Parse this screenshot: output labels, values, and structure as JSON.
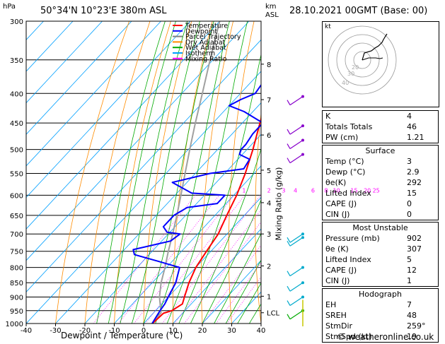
{
  "header": {
    "location": "50°34'N  10°23'E  380m  ASL",
    "datetime": "28.10.2021  00GMT  (Base: 00)",
    "hpa_label": "hPa",
    "km_label": "km",
    "asl_label": "ASL"
  },
  "chart_data": {
    "type": "line",
    "subtype": "skew-T log-P diagram",
    "xlabel": "Dewpoint / Temperature (°C)",
    "ylabel_right": "Mixing Ratio (g/kg)",
    "x_ticks": [
      "-40",
      "-30",
      "-20",
      "-10",
      "0",
      "10",
      "20",
      "30",
      "40"
    ],
    "p_ticks": [
      "300",
      "350",
      "400",
      "450",
      "500",
      "550",
      "600",
      "650",
      "700",
      "750",
      "800",
      "850",
      "900",
      "950",
      "1000"
    ],
    "km_ticks": [
      {
        "label": "8",
        "p": 356
      },
      {
        "label": "7",
        "p": 410
      },
      {
        "label": "6",
        "p": 472
      },
      {
        "label": "5",
        "p": 543
      },
      {
        "label": "4",
        "p": 618
      },
      {
        "label": "3",
        "p": 700
      },
      {
        "label": "2",
        "p": 795
      },
      {
        "label": "1",
        "p": 897
      },
      {
        "label": "LCL",
        "p": 958
      }
    ],
    "mixing_ratio_labels": [
      {
        "label": "1",
        "t": -6.5
      },
      {
        "label": "2",
        "t": 2
      },
      {
        "label": "3",
        "t": 7
      },
      {
        "label": "4",
        "t": 11
      },
      {
        "label": "6",
        "t": 17
      },
      {
        "label": "8",
        "t": 21.5
      },
      {
        "label": "10",
        "t": 25
      },
      {
        "label": "15",
        "t": 31
      },
      {
        "label": "20",
        "t": 35.5
      },
      {
        "label": "25",
        "t": 38.5
      }
    ],
    "legend": [
      {
        "name": "Temperature",
        "color": "#ff0000"
      },
      {
        "name": "Dewpoint",
        "color": "#0000ff"
      },
      {
        "name": "Parcel Trajectory",
        "color": "#808080"
      },
      {
        "name": "Dry Adiabat",
        "color": "#ff8c00"
      },
      {
        "name": "Wet Adiabat",
        "color": "#00aa00"
      },
      {
        "name": "Isotherm",
        "color": "#00a0ff"
      },
      {
        "name": "Mixing Ratio",
        "color": "#ff00ff"
      }
    ],
    "temperature": [
      [
        1000,
        3
      ],
      [
        960,
        3.5
      ],
      [
        950,
        5.5
      ],
      [
        925,
        7
      ],
      [
        900,
        5.5
      ],
      [
        850,
        2.5
      ],
      [
        800,
        0
      ],
      [
        750,
        -1.5
      ],
      [
        700,
        -3
      ],
      [
        650,
        -6
      ],
      [
        600,
        -9
      ],
      [
        550,
        -13
      ],
      [
        500,
        -18
      ],
      [
        450,
        -24
      ],
      [
        400,
        -30.5
      ],
      [
        350,
        -38.5
      ],
      [
        300,
        -47
      ]
    ],
    "dewpoint": [
      [
        1000,
        2.9
      ],
      [
        950,
        1.5
      ],
      [
        925,
        1
      ],
      [
        900,
        0
      ],
      [
        850,
        -2
      ],
      [
        800,
        -5.5
      ],
      [
        780,
        -15
      ],
      [
        760,
        -25
      ],
      [
        745,
        -27
      ],
      [
        720,
        -17
      ],
      [
        700,
        -16
      ],
      [
        695,
        -21
      ],
      [
        680,
        -24
      ],
      [
        650,
        -24
      ],
      [
        630,
        -22
      ],
      [
        620,
        -13
      ],
      [
        600,
        -13
      ],
      [
        595,
        -25
      ],
      [
        570,
        -35
      ],
      [
        550,
        -25
      ],
      [
        540,
        -15
      ],
      [
        520,
        -16
      ],
      [
        510,
        -21
      ],
      [
        500,
        -22
      ],
      [
        490,
        -22
      ],
      [
        470,
        -23
      ],
      [
        450,
        -23
      ],
      [
        430,
        -33
      ],
      [
        420,
        -40
      ],
      [
        410,
        -38
      ],
      [
        400,
        -35
      ],
      [
        380,
        -36
      ],
      [
        360,
        -34
      ],
      [
        350,
        -38
      ],
      [
        345,
        -35
      ],
      [
        320,
        -40
      ],
      [
        300,
        -44
      ]
    ],
    "parcel": [
      [
        1000,
        3
      ],
      [
        958,
        2.5
      ],
      [
        900,
        -3
      ],
      [
        850,
        -7
      ],
      [
        800,
        -10.5
      ],
      [
        750,
        -14.5
      ],
      [
        700,
        -18.5
      ],
      [
        650,
        -23
      ],
      [
        600,
        -28
      ],
      [
        550,
        -33.5
      ],
      [
        500,
        -39.5
      ],
      [
        450,
        -46
      ],
      [
        400,
        -53
      ],
      [
        350,
        -61
      ],
      [
        300,
        -70
      ]
    ],
    "range": {
      "tmin": -40,
      "tmax": 40,
      "pmin": 300,
      "pmax": 1000
    },
    "grid": true
  },
  "indices": {
    "k_label": "K",
    "k": "4",
    "tt_label": "Totals Totals",
    "tt": "46",
    "pw_label": "PW (cm)",
    "pw": "1.21",
    "surface_title": "Surface",
    "surface": [
      {
        "label": "Temp (°C)",
        "value": "3"
      },
      {
        "label": "Dewp (°C)",
        "value": "2.9"
      },
      {
        "label": "θe(K)",
        "value": "292"
      },
      {
        "label": "Lifted Index",
        "value": "15"
      },
      {
        "label": "CAPE (J)",
        "value": "0"
      },
      {
        "label": "CIN (J)",
        "value": "0"
      }
    ],
    "mu_title": "Most Unstable",
    "mu": [
      {
        "label": "Pressure (mb)",
        "value": "902"
      },
      {
        "label": "θe (K)",
        "value": "307"
      },
      {
        "label": "Lifted Index",
        "value": "5"
      },
      {
        "label": "CAPE (J)",
        "value": "12"
      },
      {
        "label": "CIN (J)",
        "value": "1"
      }
    ],
    "hodo_title": "Hodograph",
    "hodo": [
      {
        "label": "EH",
        "value": "7"
      },
      {
        "label": "SREH",
        "value": "48"
      },
      {
        "label": "StmDir",
        "value": "259°"
      },
      {
        "label": "StmSpd (kt)",
        "value": "19"
      }
    ]
  },
  "hodograph": {
    "unit_label": "kt",
    "ring_labels": [
      "40",
      "30",
      "20"
    ]
  },
  "footer": {
    "copyright": "© weatheronline.co.uk"
  }
}
